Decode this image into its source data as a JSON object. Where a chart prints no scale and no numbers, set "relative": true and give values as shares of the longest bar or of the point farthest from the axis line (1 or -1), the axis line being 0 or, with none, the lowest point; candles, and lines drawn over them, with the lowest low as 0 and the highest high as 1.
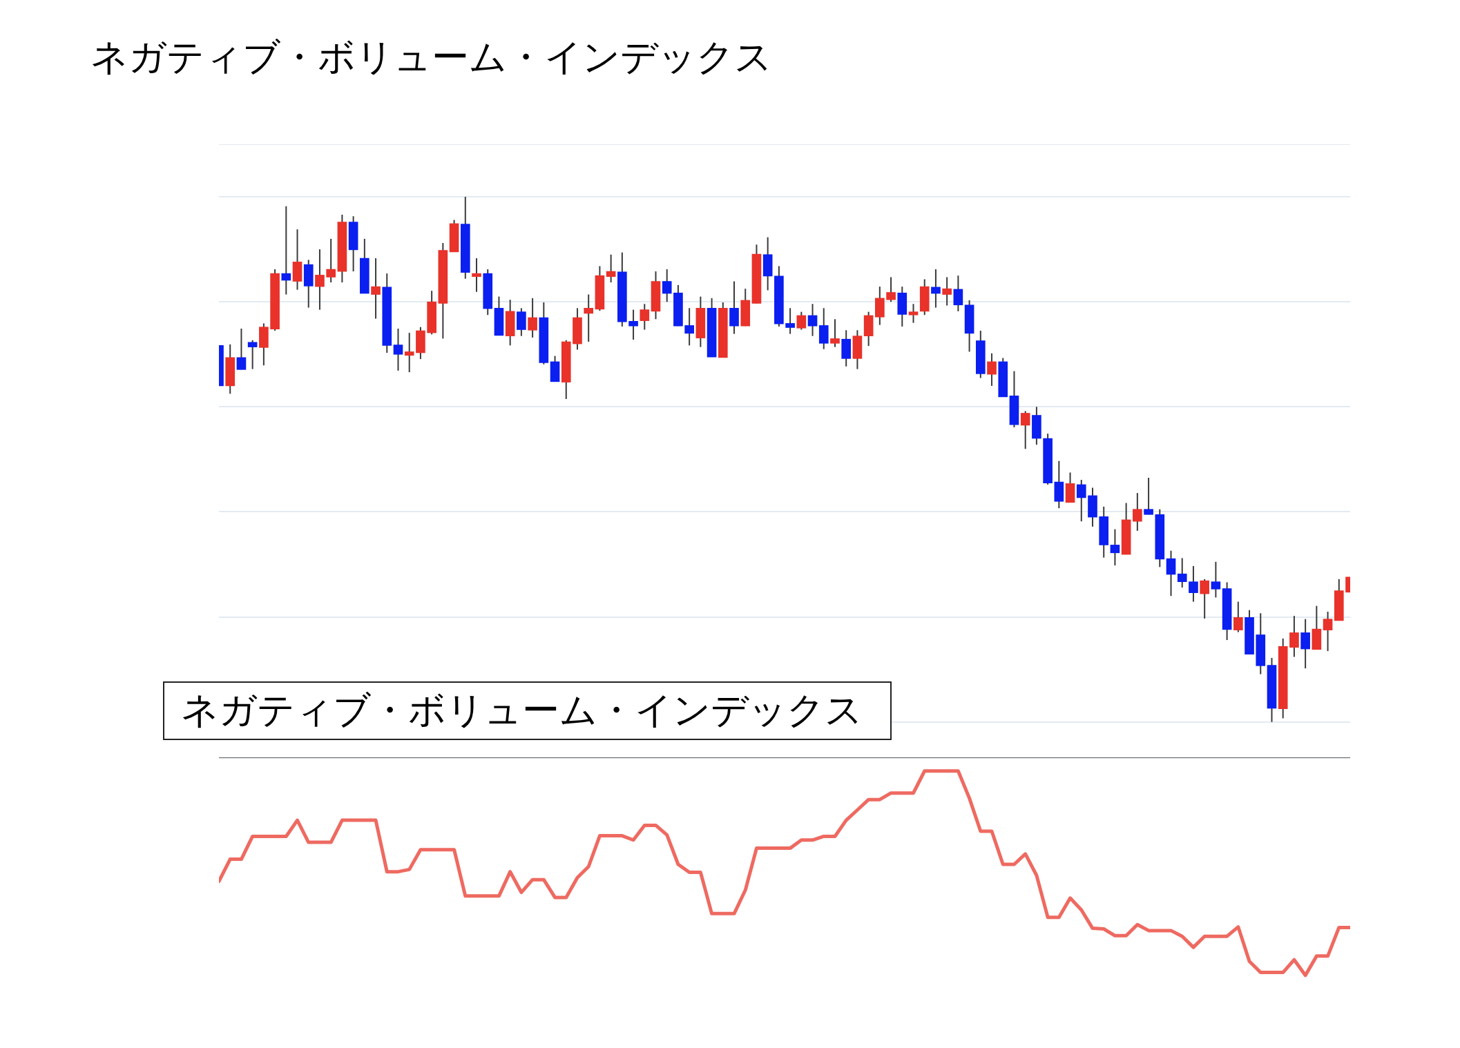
{
  "chart_data": [
    {
      "type": "candlestick",
      "title": "ネガティブ・ボリューム・インデックス",
      "relative": true,
      "grid": "y",
      "tick_labels": false,
      "categories": [
        null,
        null,
        null,
        null,
        null,
        null,
        null,
        null,
        null,
        null,
        null,
        null,
        null,
        null,
        null,
        null,
        null,
        null,
        null,
        null,
        null,
        null,
        null,
        null,
        null,
        null,
        null,
        null,
        null,
        null,
        null,
        null,
        null,
        null,
        null,
        null,
        null,
        null,
        null,
        null,
        null,
        null,
        null,
        null,
        null,
        null,
        null,
        null,
        null,
        null,
        null,
        null,
        null,
        null,
        null,
        null,
        null,
        null,
        null,
        null,
        null,
        null,
        null,
        null,
        null,
        null,
        null,
        null,
        null,
        null,
        null,
        null,
        null,
        null,
        null,
        null,
        null,
        null,
        null,
        null,
        null,
        null,
        null,
        null,
        null,
        null,
        null,
        null,
        null,
        null,
        null,
        null,
        null,
        null,
        null,
        null,
        null,
        null,
        null,
        null,
        null,
        null
      ],
      "ohlc": [
        [
          0.717,
          0.717,
          0.64,
          0.64
        ],
        [
          0.64,
          0.719,
          0.625,
          0.694
        ],
        [
          0.694,
          0.749,
          0.671,
          0.671
        ],
        [
          0.723,
          0.727,
          0.672,
          0.714
        ],
        [
          0.713,
          0.759,
          0.679,
          0.752
        ],
        [
          0.748,
          0.862,
          0.745,
          0.854
        ],
        [
          0.854,
          0.982,
          0.814,
          0.841
        ],
        [
          0.839,
          0.938,
          0.823,
          0.876
        ],
        [
          0.871,
          0.88,
          0.789,
          0.83
        ],
        [
          0.829,
          0.9,
          0.785,
          0.851
        ],
        [
          0.847,
          0.92,
          0.837,
          0.862
        ],
        [
          0.858,
          0.966,
          0.837,
          0.952
        ],
        [
          0.952,
          0.963,
          0.858,
          0.899
        ],
        [
          0.883,
          0.92,
          0.816,
          0.816
        ],
        [
          0.814,
          0.883,
          0.768,
          0.829
        ],
        [
          0.828,
          0.854,
          0.703,
          0.717
        ],
        [
          0.718,
          0.749,
          0.669,
          0.7
        ],
        [
          0.698,
          0.741,
          0.666,
          0.705
        ],
        [
          0.703,
          0.752,
          0.691,
          0.745
        ],
        [
          0.741,
          0.821,
          0.738,
          0.8
        ],
        [
          0.797,
          0.912,
          0.73,
          0.898
        ],
        [
          0.895,
          0.956,
          0.895,
          0.949
        ],
        [
          0.948,
          1,
          0.844,
          0.856
        ],
        [
          0.848,
          0.883,
          0.819,
          0.854
        ],
        [
          0.854,
          0.862,
          0.775,
          0.787
        ],
        [
          0.788,
          0.81,
          0.736,
          0.736
        ],
        [
          0.735,
          0.804,
          0.717,
          0.782
        ],
        [
          0.781,
          0.788,
          0.735,
          0.747
        ],
        [
          0.746,
          0.807,
          0.732,
          0.77
        ],
        [
          0.77,
          0.799,
          0.681,
          0.684
        ],
        [
          0.686,
          0.697,
          0.648,
          0.648
        ],
        [
          0.647,
          0.727,
          0.615,
          0.724
        ],
        [
          0.72,
          0.788,
          0.709,
          0.77
        ],
        [
          0.778,
          0.814,
          0.724,
          0.788
        ],
        [
          0.786,
          0.868,
          0.783,
          0.85
        ],
        [
          0.848,
          0.89,
          0.837,
          0.858
        ],
        [
          0.857,
          0.894,
          0.753,
          0.762
        ],
        [
          0.763,
          0.785,
          0.728,
          0.754
        ],
        [
          0.764,
          0.796,
          0.747,
          0.785
        ],
        [
          0.782,
          0.858,
          0.767,
          0.839
        ],
        [
          0.839,
          0.862,
          0.8,
          0.816
        ],
        [
          0.817,
          0.832,
          0.754,
          0.754
        ],
        [
          0.755,
          0.788,
          0.717,
          0.74
        ],
        [
          0.731,
          0.81,
          0.714,
          0.788
        ],
        [
          0.788,
          0.807,
          0.695,
          0.695
        ],
        [
          0.694,
          0.799,
          0.694,
          0.788
        ],
        [
          0.788,
          0.839,
          0.739,
          0.754
        ],
        [
          0.754,
          0.825,
          0.754,
          0.803
        ],
        [
          0.797,
          0.909,
          0.797,
          0.891
        ],
        [
          0.89,
          0.923,
          0.822,
          0.849
        ],
        [
          0.849,
          0.868,
          0.753,
          0.758
        ],
        [
          0.759,
          0.788,
          0.739,
          0.751
        ],
        [
          0.75,
          0.781,
          0.747,
          0.774
        ],
        [
          0.774,
          0.796,
          0.735,
          0.754
        ],
        [
          0.755,
          0.788,
          0.71,
          0.721
        ],
        [
          0.721,
          0.767,
          0.714,
          0.73
        ],
        [
          0.729,
          0.746,
          0.677,
          0.692
        ],
        [
          0.692,
          0.746,
          0.672,
          0.735
        ],
        [
          0.735,
          0.781,
          0.716,
          0.774
        ],
        [
          0.771,
          0.829,
          0.756,
          0.807
        ],
        [
          0.804,
          0.847,
          0.8,
          0.818
        ],
        [
          0.817,
          0.829,
          0.753,
          0.776
        ],
        [
          0.775,
          0.796,
          0.76,
          0.781
        ],
        [
          0.782,
          0.843,
          0.775,
          0.829
        ],
        [
          0.828,
          0.862,
          0.789,
          0.816
        ],
        [
          0.814,
          0.847,
          0.793,
          0.825
        ],
        [
          0.824,
          0.85,
          0.782,
          0.794
        ],
        [
          0.794,
          0.803,
          0.705,
          0.74
        ],
        [
          0.726,
          0.745,
          0.655,
          0.663
        ],
        [
          0.662,
          0.702,
          0.64,
          0.686
        ],
        [
          0.686,
          0.693,
          0.619,
          0.619
        ],
        [
          0.621,
          0.668,
          0.561,
          0.566
        ],
        [
          0.565,
          0.592,
          0.52,
          0.588
        ],
        [
          0.584,
          0.6,
          0.528,
          0.54
        ],
        [
          0.54,
          0.549,
          0.452,
          0.455
        ],
        [
          0.457,
          0.497,
          0.407,
          0.42
        ],
        [
          0.418,
          0.475,
          0.418,
          0.454
        ],
        [
          0.452,
          0.461,
          0.382,
          0.427
        ],
        [
          0.431,
          0.446,
          0.372,
          0.39
        ],
        [
          0.391,
          0.41,
          0.313,
          0.337
        ],
        [
          0.337,
          0.367,
          0.298,
          0.322
        ],
        [
          0.319,
          0.417,
          0.319,
          0.385
        ],
        [
          0.382,
          0.436,
          0.364,
          0.405
        ],
        [
          0.405,
          0.465,
          0.395,
          0.395
        ],
        [
          0.395,
          0.405,
          0.295,
          0.31
        ],
        [
          0.311,
          0.326,
          0.24,
          0.281
        ],
        [
          0.282,
          0.312,
          0.256,
          0.267
        ],
        [
          0.267,
          0.297,
          0.229,
          0.246
        ],
        [
          0.244,
          0.272,
          0.197,
          0.269
        ],
        [
          0.267,
          0.305,
          0.237,
          0.253
        ],
        [
          0.254,
          0.266,
          0.156,
          0.176
        ],
        [
          0.175,
          0.229,
          0.171,
          0.199
        ],
        [
          0.199,
          0.213,
          0.129,
          0.129
        ],
        [
          0.166,
          0.207,
          0.091,
          0.107
        ],
        [
          0.108,
          0.122,
          0,
          0.026
        ],
        [
          0.025,
          0.159,
          0.007,
          0.144
        ],
        [
          0.142,
          0.202,
          0.124,
          0.17
        ],
        [
          0.17,
          0.196,
          0.102,
          0.139
        ],
        [
          0.138,
          0.221,
          0.138,
          0.177
        ],
        [
          0.175,
          0.21,
          0.135,
          0.196
        ],
        [
          0.193,
          0.272,
          0.193,
          0.25
        ],
        [
          0.247,
          0.276,
          0.247,
          0.276
        ]
      ],
      "colors": [
        "#0a1ff0",
        "#e8322a",
        "#0a1ff0",
        "#0a1ff0",
        "#e8322a",
        "#e8322a",
        "#0a1ff0",
        "#e8322a",
        "#0a1ff0",
        "#e8322a",
        "#e8322a",
        "#e8322a",
        "#0a1ff0",
        "#0a1ff0",
        "#e8322a",
        "#0a1ff0",
        "#0a1ff0",
        "#e8322a",
        "#e8322a",
        "#e8322a",
        "#e8322a",
        "#e8322a",
        "#0a1ff0",
        "#e8322a",
        "#0a1ff0",
        "#0a1ff0",
        "#e8322a",
        "#0a1ff0",
        "#e8322a",
        "#0a1ff0",
        "#0a1ff0",
        "#e8322a",
        "#e8322a",
        "#e8322a",
        "#e8322a",
        "#e8322a",
        "#0a1ff0",
        "#0a1ff0",
        "#e8322a",
        "#e8322a",
        "#0a1ff0",
        "#0a1ff0",
        "#0a1ff0",
        "#e8322a",
        "#0a1ff0",
        "#e8322a",
        "#0a1ff0",
        "#e8322a",
        "#e8322a",
        "#0a1ff0",
        "#0a1ff0",
        "#0a1ff0",
        "#e8322a",
        "#0a1ff0",
        "#0a1ff0",
        "#e8322a",
        "#0a1ff0",
        "#e8322a",
        "#e8322a",
        "#e8322a",
        "#e8322a",
        "#0a1ff0",
        "#e8322a",
        "#e8322a",
        "#0a1ff0",
        "#e8322a",
        "#0a1ff0",
        "#0a1ff0",
        "#0a1ff0",
        "#e8322a",
        "#0a1ff0",
        "#0a1ff0",
        "#e8322a",
        "#0a1ff0",
        "#0a1ff0",
        "#0a1ff0",
        "#e8322a",
        "#0a1ff0",
        "#0a1ff0",
        "#0a1ff0",
        "#0a1ff0",
        "#e8322a",
        "#e8322a",
        "#0a1ff0",
        "#0a1ff0",
        "#0a1ff0",
        "#0a1ff0",
        "#0a1ff0",
        "#e8322a",
        "#0a1ff0",
        "#0a1ff0",
        "#e8322a",
        "#0a1ff0",
        "#0a1ff0",
        "#0a1ff0",
        "#e8322a",
        "#e8322a",
        "#0a1ff0",
        "#e8322a",
        "#e8322a",
        "#e8322a",
        "#e8322a"
      ]
    },
    {
      "type": "line",
      "title": "ネガティブ・ボリューム・インデックス",
      "relative": true,
      "tick_labels": false,
      "marker": "none",
      "color": "#ee6a61",
      "categories": [
        null,
        null,
        null,
        null,
        null,
        null,
        null,
        null,
        null,
        null,
        null,
        null,
        null,
        null,
        null,
        null,
        null,
        null,
        null,
        null,
        null,
        null,
        null,
        null,
        null,
        null,
        null,
        null,
        null,
        null,
        null,
        null,
        null,
        null,
        null,
        null,
        null,
        null,
        null,
        null,
        null,
        null,
        null,
        null,
        null,
        null,
        null,
        null,
        null,
        null,
        null,
        null,
        null,
        null,
        null,
        null,
        null,
        null,
        null,
        null,
        null,
        null,
        null,
        null,
        null,
        null,
        null,
        null,
        null,
        null,
        null,
        null,
        null,
        null,
        null,
        null,
        null,
        null,
        null,
        null,
        null,
        null,
        null,
        null,
        null,
        null,
        null,
        null,
        null,
        null,
        null,
        null,
        null,
        null,
        null,
        null,
        null,
        null,
        null,
        null,
        null,
        null
      ],
      "values": [
        0.46,
        0.568,
        0.568,
        0.68,
        0.68,
        0.68,
        0.68,
        0.759,
        0.651,
        0.651,
        0.651,
        0.759,
        0.759,
        0.759,
        0.759,
        0.507,
        0.507,
        0.518,
        0.615,
        0.615,
        0.615,
        0.615,
        0.388,
        0.388,
        0.388,
        0.388,
        0.507,
        0.406,
        0.468,
        0.468,
        0.381,
        0.381,
        0.478,
        0.532,
        0.683,
        0.683,
        0.683,
        0.662,
        0.734,
        0.734,
        0.687,
        0.543,
        0.504,
        0.504,
        0.302,
        0.302,
        0.302,
        0.417,
        0.622,
        0.622,
        0.622,
        0.622,
        0.662,
        0.662,
        0.68,
        0.68,
        0.759,
        0.809,
        0.86,
        0.86,
        0.892,
        0.892,
        0.892,
        1,
        1,
        1,
        1,
        0.867,
        0.705,
        0.705,
        0.543,
        0.543,
        0.594,
        0.489,
        0.284,
        0.284,
        0.378,
        0.32,
        0.23,
        0.227,
        0.194,
        0.194,
        0.248,
        0.219,
        0.219,
        0.219,
        0.191,
        0.137,
        0.191,
        0.191,
        0.191,
        0.237,
        0.068,
        0.014,
        0.014,
        0.014,
        0.076,
        0,
        0.094,
        0.094,
        0.234,
        0.234
      ]
    }
  ]
}
